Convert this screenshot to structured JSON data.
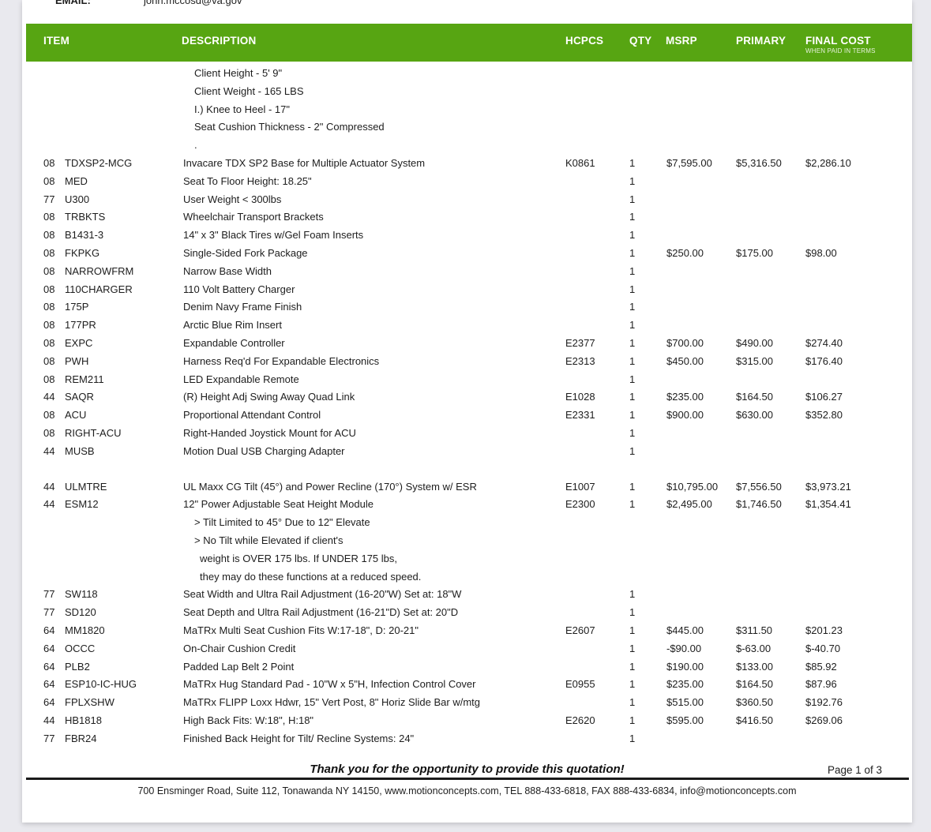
{
  "colors": {
    "canvas_bg": "#e9e9ee",
    "page_bg": "#ffffff",
    "header_bg": "#57a512",
    "header_text": "#ffffff",
    "body_text": "#1d1d1d",
    "footer_rule": "#1a1a1a"
  },
  "top": {
    "email_label": "EMAIL:",
    "email_value": "john.mccosd@va.gov"
  },
  "table": {
    "header": {
      "item": "ITEM",
      "description": "DESCRIPTION",
      "hcpcs": "HCPCS",
      "qty": "QTY",
      "msrp": "MSRP",
      "primary": "PRIMARY",
      "final_cost": "FINAL COST",
      "final_cost_sub": "WHEN PAID IN TERMS"
    },
    "rows": [
      {
        "type": "note",
        "indent": 1,
        "description": "Client Height - 5' 9\""
      },
      {
        "type": "note",
        "indent": 1,
        "description": "Client Weight - 165 LBS"
      },
      {
        "type": "note",
        "indent": 1,
        "description": "I.) Knee to Heel - 17\""
      },
      {
        "type": "note",
        "indent": 1,
        "description": "Seat Cushion Thickness - 2\" Compressed"
      },
      {
        "type": "note",
        "indent": 1,
        "description": "."
      },
      {
        "type": "item",
        "group": "08",
        "code": "TDXSP2-MCG",
        "description": "Invacare TDX SP2 Base for Multiple Actuator System",
        "hcpcs": "K0861",
        "qty": "1",
        "msrp": "$7,595.00",
        "primary": "$5,316.50",
        "final": "$2,286.10"
      },
      {
        "type": "item",
        "group": "08",
        "code": "MED",
        "description": "Seat To Floor Height: 18.25\"",
        "qty": "1"
      },
      {
        "type": "item",
        "group": "77",
        "code": "U300",
        "description": "User Weight < 300lbs",
        "qty": "1"
      },
      {
        "type": "item",
        "group": "08",
        "code": "TRBKTS",
        "description": "Wheelchair Transport Brackets",
        "qty": "1"
      },
      {
        "type": "item",
        "group": "08",
        "code": "B1431-3",
        "description": "14\" x 3\" Black Tires w/Gel Foam Inserts",
        "qty": "1"
      },
      {
        "type": "item",
        "group": "08",
        "code": "FKPKG",
        "description": "Single-Sided Fork Package",
        "qty": "1",
        "msrp": "$250.00",
        "primary": "$175.00",
        "final": "$98.00"
      },
      {
        "type": "item",
        "group": "08",
        "code": "NARROWFRM",
        "description": "Narrow Base Width",
        "qty": "1"
      },
      {
        "type": "item",
        "group": "08",
        "code": "110CHARGER",
        "description": "110 Volt Battery Charger",
        "qty": "1"
      },
      {
        "type": "item",
        "group": "08",
        "code": "175P",
        "description": "Denim Navy Frame Finish",
        "qty": "1"
      },
      {
        "type": "item",
        "group": "08",
        "code": "177PR",
        "description": "Arctic Blue Rim Insert",
        "qty": "1"
      },
      {
        "type": "item",
        "group": "08",
        "code": "EXPC",
        "description": "Expandable Controller",
        "hcpcs": "E2377",
        "qty": "1",
        "msrp": "$700.00",
        "primary": "$490.00",
        "final": "$274.40"
      },
      {
        "type": "item",
        "group": "08",
        "code": "PWH",
        "description": "Harness Req'd For Expandable Electronics",
        "hcpcs": "E2313",
        "qty": "1",
        "msrp": "$450.00",
        "primary": "$315.00",
        "final": "$176.40"
      },
      {
        "type": "item",
        "group": "08",
        "code": "REM211",
        "description": "LED Expandable Remote",
        "qty": "1"
      },
      {
        "type": "item",
        "group": "44",
        "code": "SAQR",
        "description": "(R) Height Adj Swing Away Quad Link",
        "hcpcs": "E1028",
        "qty": "1",
        "msrp": "$235.00",
        "primary": "$164.50",
        "final": "$106.27"
      },
      {
        "type": "item",
        "group": "08",
        "code": "ACU",
        "description": "Proportional Attendant Control",
        "hcpcs": "E2331",
        "qty": "1",
        "msrp": "$900.00",
        "primary": "$630.00",
        "final": "$352.80"
      },
      {
        "type": "item",
        "group": "08",
        "code": "RIGHT-ACU",
        "description": "Right-Handed Joystick Mount for ACU",
        "qty": "1"
      },
      {
        "type": "item",
        "group": "44",
        "code": "MUSB",
        "description": "Motion Dual USB Charging Adapter",
        "qty": "1"
      },
      {
        "type": "item",
        "gap_before": true,
        "group": "44",
        "code": "ULMTRE",
        "description": "UL Maxx CG Tilt (45°) and Power Recline (170°) System w/ ESR",
        "hcpcs": "E1007",
        "qty": "1",
        "msrp": "$10,795.00",
        "primary": "$7,556.50",
        "final": "$3,973.21"
      },
      {
        "type": "item",
        "group": "44",
        "code": "ESM12",
        "description": "12\" Power Adjustable Seat Height Module",
        "hcpcs": "E2300",
        "qty": "1",
        "msrp": "$2,495.00",
        "primary": "$1,746.50",
        "final": "$1,354.41"
      },
      {
        "type": "note",
        "indent": 1,
        "description": "> Tilt Limited to 45° Due to 12\" Elevate"
      },
      {
        "type": "note",
        "indent": 1,
        "description": "> No Tilt while Elevated if client's"
      },
      {
        "type": "note",
        "indent": 2,
        "description": "weight is OVER 175 lbs. If UNDER 175 lbs,"
      },
      {
        "type": "note",
        "indent": 2,
        "description": "they may do these functions at a reduced speed."
      },
      {
        "type": "item",
        "group": "77",
        "code": "SW118",
        "description": "Seat Width and Ultra Rail Adjustment (16-20\"W) Set at: 18\"W",
        "qty": "1"
      },
      {
        "type": "item",
        "group": "77",
        "code": "SD120",
        "description": "Seat Depth and Ultra Rail Adjustment (16-21\"D) Set at: 20\"D",
        "qty": "1"
      },
      {
        "type": "item",
        "group": "64",
        "code": "MM1820",
        "description": "MaTRx Multi Seat Cushion Fits W:17-18\", D: 20-21\"",
        "hcpcs": "E2607",
        "qty": "1",
        "msrp": "$445.00",
        "primary": "$311.50",
        "final": "$201.23"
      },
      {
        "type": "item",
        "group": "64",
        "code": "OCCC",
        "description": "On-Chair Cushion Credit",
        "qty": "1",
        "msrp": "-$90.00",
        "primary": "$-63.00",
        "final": "$-40.70"
      },
      {
        "type": "item",
        "group": "64",
        "code": "PLB2",
        "description": "Padded Lap Belt 2 Point",
        "qty": "1",
        "msrp": "$190.00",
        "primary": "$133.00",
        "final": "$85.92"
      },
      {
        "type": "item",
        "group": "64",
        "code": "ESP10-IC-HUG",
        "description": "MaTRx Hug Standard Pad - 10\"W x 5\"H, Infection Control Cover",
        "hcpcs": "E0955",
        "qty": "1",
        "msrp": "$235.00",
        "primary": "$164.50",
        "final": "$87.96"
      },
      {
        "type": "item",
        "group": "64",
        "code": "FPLXSHW",
        "description": "MaTRx FLIPP Loxx Hdwr, 15\" Vert Post, 8\" Horiz Slide Bar w/mtg",
        "qty": "1",
        "msrp": "$515.00",
        "primary": "$360.50",
        "final": "$192.76"
      },
      {
        "type": "item",
        "group": "44",
        "code": "HB1818",
        "description": "High Back Fits: W:18\", H:18\"",
        "hcpcs": "E2620",
        "qty": "1",
        "msrp": "$595.00",
        "primary": "$416.50",
        "final": "$269.06"
      },
      {
        "type": "item",
        "group": "77",
        "code": "FBR24",
        "description": "Finished Back Height for Tilt/ Recline Systems: 24\"",
        "qty": "1"
      }
    ]
  },
  "footer": {
    "thank_you": "Thank you for the opportunity to provide this quotation!",
    "page_label": "Page 1 of 3",
    "address": "700 Ensminger Road, Suite 112, Tonawanda NY 14150, www.motionconcepts.com,  TEL 888-433-6818, FAX 888-433-6834, info@motionconcepts.com"
  }
}
